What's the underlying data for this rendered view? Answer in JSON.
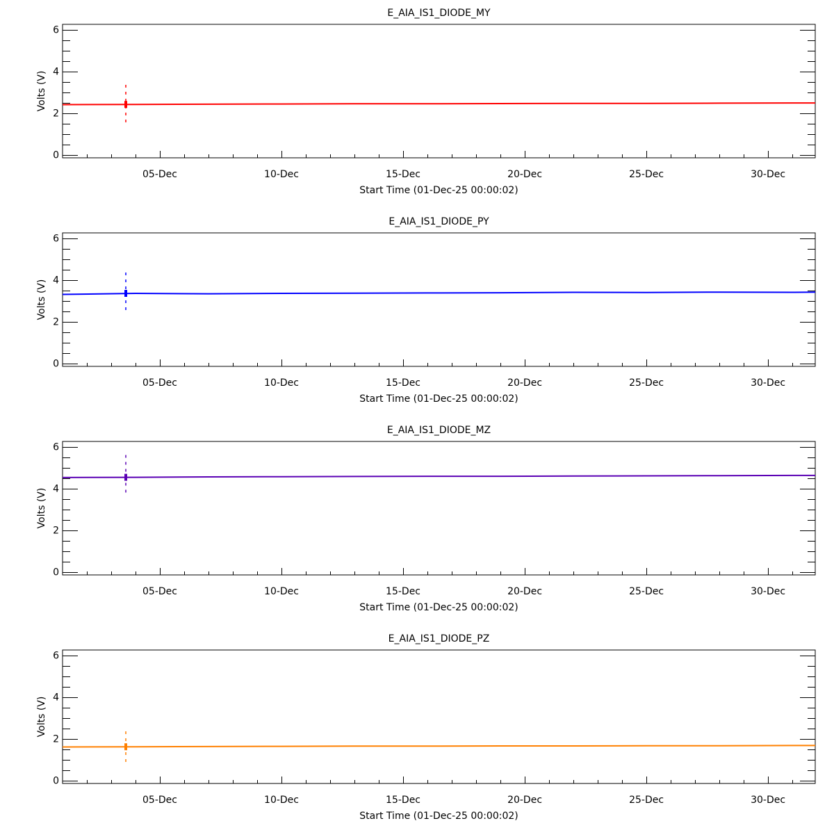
{
  "chart_data": [
    {
      "type": "line",
      "title": "E_AIA_IS1_DIODE_MY",
      "xlabel": "Start Time (01-Dec-25 00:00:02)",
      "ylabel": "Volts (V)",
      "color": "#ff0000",
      "xlim_day": [
        1,
        31.94
      ],
      "ylim": [
        -0.15,
        6.25
      ],
      "yticks": [
        "0",
        "2",
        "4",
        "6"
      ],
      "xticks": [
        "05-Dec",
        "10-Dec",
        "15-Dec",
        "20-Dec",
        "25-Dec",
        "30-Dec"
      ],
      "x_day": [
        1,
        4,
        7,
        10,
        13,
        16,
        19,
        22,
        25,
        28,
        31,
        31.94
      ],
      "values": [
        2.4,
        2.41,
        2.42,
        2.43,
        2.44,
        2.44,
        2.45,
        2.46,
        2.46,
        2.47,
        2.48,
        2.48
      ],
      "spike": {
        "day": 3.6,
        "min": 1.55,
        "max": 3.35
      }
    },
    {
      "type": "line",
      "title": "E_AIA_IS1_DIODE_PY",
      "xlabel": "Start Time (01-Dec-25 00:00:02)",
      "ylabel": "Volts (V)",
      "color": "#0000ff",
      "xlim_day": [
        1,
        31.94
      ],
      "ylim": [
        -0.15,
        6.25
      ],
      "yticks": [
        "0",
        "2",
        "4",
        "6"
      ],
      "xticks": [
        "05-Dec",
        "10-Dec",
        "15-Dec",
        "20-Dec",
        "25-Dec",
        "30-Dec"
      ],
      "x_day": [
        1,
        4,
        7,
        10,
        13,
        16,
        19,
        22,
        25,
        28,
        31,
        31.94
      ],
      "values": [
        3.3,
        3.35,
        3.33,
        3.35,
        3.36,
        3.37,
        3.38,
        3.4,
        3.39,
        3.41,
        3.4,
        3.41
      ],
      "spike": {
        "day": 3.6,
        "min": 2.4,
        "max": 4.35
      }
    },
    {
      "type": "line",
      "title": "E_AIA_IS1_DIODE_MZ",
      "xlabel": "Start Time (01-Dec-25 00:00:02)",
      "ylabel": "Volts (V)",
      "color": "#5a00b4",
      "xlim_day": [
        1,
        31.94
      ],
      "ylim": [
        -0.15,
        6.25
      ],
      "yticks": [
        "0",
        "2",
        "4",
        "6"
      ],
      "xticks": [
        "05-Dec",
        "10-Dec",
        "15-Dec",
        "20-Dec",
        "25-Dec",
        "30-Dec"
      ],
      "x_day": [
        1,
        4,
        7,
        10,
        13,
        16,
        19,
        22,
        25,
        28,
        31,
        31.94
      ],
      "values": [
        4.52,
        4.53,
        4.55,
        4.56,
        4.57,
        4.58,
        4.58,
        4.59,
        4.6,
        4.61,
        4.62,
        4.62
      ],
      "spike": {
        "day": 3.6,
        "min": 3.6,
        "max": 5.6
      }
    },
    {
      "type": "line",
      "title": "E_AIA_IS1_DIODE_PZ",
      "xlabel": "Start Time (01-Dec-25 00:00:02)",
      "ylabel": "Volts (V)",
      "color": "#ff8000",
      "xlim_day": [
        1,
        31.94
      ],
      "ylim": [
        -0.15,
        6.25
      ],
      "yticks": [
        "0",
        "2",
        "4",
        "6"
      ],
      "xticks": [
        "05-Dec",
        "10-Dec",
        "15-Dec",
        "20-Dec",
        "25-Dec",
        "30-Dec"
      ],
      "x_day": [
        1,
        4,
        7,
        10,
        13,
        16,
        19,
        22,
        25,
        28,
        31,
        31.94
      ],
      "values": [
        1.6,
        1.61,
        1.62,
        1.63,
        1.64,
        1.64,
        1.65,
        1.65,
        1.66,
        1.66,
        1.67,
        1.67
      ],
      "spike": {
        "day": 3.6,
        "min": 0.8,
        "max": 2.35
      }
    }
  ]
}
